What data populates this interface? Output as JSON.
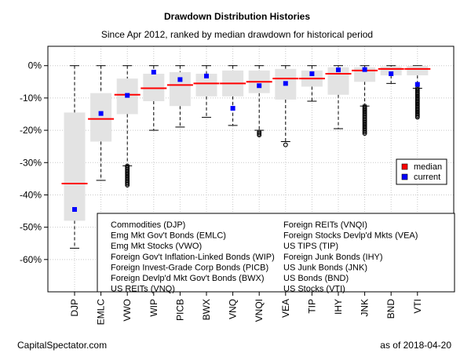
{
  "chart_data": {
    "type": "box",
    "title": "Drawdown Distribution Histories",
    "subtitle": "Since Apr 2012, ranked by median drawdown for historical period",
    "ylim": [
      -70,
      6
    ],
    "yticks": [
      0,
      -10,
      -20,
      -30,
      -40,
      -50,
      -60
    ],
    "ytick_labels": [
      "0%",
      "-10%",
      "-20%",
      "-30%",
      "-40%",
      "-50%",
      "-60%"
    ],
    "grid": true,
    "legend": {
      "placement": "right",
      "entries": [
        {
          "label": "median",
          "color": "#ff0000"
        },
        {
          "label": "current",
          "color": "#0000ff"
        }
      ]
    },
    "categories": [
      "DJP",
      "EMLC",
      "VWO",
      "WIP",
      "PICB",
      "BWX",
      "VNQ",
      "VNQI",
      "VEA",
      "TIP",
      "IHY",
      "JNK",
      "BND",
      "VTI"
    ],
    "boxes": [
      {
        "ticker": "DJP",
        "whisker_low": -56.5,
        "q1": -48.0,
        "median": -36.5,
        "q3": -14.5,
        "whisker_high": 0.0,
        "current": -44.5,
        "outliers_low": null
      },
      {
        "ticker": "EMLC",
        "whisker_low": -35.5,
        "q1": -23.5,
        "median": -16.5,
        "q3": -8.5,
        "whisker_high": 0.0,
        "current": -14.8,
        "outliers_low": null
      },
      {
        "ticker": "VWO",
        "whisker_low": -31.0,
        "q1": -15.0,
        "median": -9.0,
        "q3": -4.0,
        "whisker_high": 0.0,
        "current": -9.2,
        "outliers_low": [
          -31.0,
          -37.0
        ]
      },
      {
        "ticker": "WIP",
        "whisker_low": -20.0,
        "q1": -11.0,
        "median": -7.0,
        "q3": -2.5,
        "whisker_high": 0.0,
        "current": -2.0,
        "outliers_low": null
      },
      {
        "ticker": "PICB",
        "whisker_low": -19.0,
        "q1": -12.5,
        "median": -6.0,
        "q3": -2.0,
        "whisker_high": 0.0,
        "current": -4.3,
        "outliers_low": null
      },
      {
        "ticker": "BWX",
        "whisker_low": -16.0,
        "q1": -9.5,
        "median": -5.5,
        "q3": -2.5,
        "whisker_high": 0.0,
        "current": -3.2,
        "outliers_low": null
      },
      {
        "ticker": "VNQ",
        "whisker_low": -18.5,
        "q1": -9.5,
        "median": -5.5,
        "q3": -1.5,
        "whisker_high": 0.0,
        "current": -13.2,
        "outliers_low": null
      },
      {
        "ticker": "VNQI",
        "whisker_low": -20.0,
        "q1": -8.5,
        "median": -5.0,
        "q3": -1.5,
        "whisker_high": 0.0,
        "current": -6.2,
        "outliers_low": [
          -20.5,
          -21.5
        ]
      },
      {
        "ticker": "VEA",
        "whisker_low": -23.5,
        "q1": -10.5,
        "median": -4.0,
        "q3": -1.0,
        "whisker_high": 0.0,
        "current": -5.5,
        "outliers_low": [
          -24.5,
          -24.5
        ]
      },
      {
        "ticker": "TIP",
        "whisker_low": -11.0,
        "q1": -6.5,
        "median": -4.0,
        "q3": -1.5,
        "whisker_high": 0.0,
        "current": -2.5,
        "outliers_low": null
      },
      {
        "ticker": "IHY",
        "whisker_low": -19.5,
        "q1": -9.0,
        "median": -2.5,
        "q3": -0.5,
        "whisker_high": 0.0,
        "current": -1.3,
        "outliers_low": null
      },
      {
        "ticker": "JNK",
        "whisker_low": -12.5,
        "q1": -5.0,
        "median": -1.5,
        "q3": -0.5,
        "whisker_high": 0.0,
        "current": -1.2,
        "outliers_low": [
          -12.5,
          -21.0
        ]
      },
      {
        "ticker": "BND",
        "whisker_low": -5.5,
        "q1": -3.0,
        "median": -1.0,
        "q3": -0.3,
        "whisker_high": 0.0,
        "current": -2.5,
        "outliers_low": null
      },
      {
        "ticker": "VTI",
        "whisker_low": -7.0,
        "q1": -3.0,
        "median": -1.0,
        "q3": -0.1,
        "whisker_high": 0.0,
        "current": -5.8,
        "outliers_low": [
          -7.0,
          -16.0
        ]
      }
    ],
    "key_entries_col1": [
      "Commodities (DJP)",
      "Emg Mkt Gov't Bonds (EMLC)",
      "Emg Mkt Stocks (VWO)",
      "Foreign Gov't Inflation-Linked Bonds (WIP)",
      "Foreign Invest-Grade Corp Bonds (PICB)",
      "Foreign Devlp'd Mkt Gov't Bonds (BWX)",
      "US REITs (VNQ)"
    ],
    "key_entries_col2": [
      "Foreign REITs (VNQI)",
      "Foreign Stocks Devlp'd Mkts (VEA)",
      "US TIPS (TIP)",
      "Foreign Junk Bonds (IHY)",
      "US Junk Bonds (JNK)",
      "US Bonds (BND)",
      "US Stocks (VTI)"
    ],
    "colors": {
      "box_fill": "#e3e3e3",
      "median": "#ff0000",
      "current": "#0000ff",
      "grid": "#c8c8c8"
    }
  },
  "footer": {
    "source": "CapitalSpectator.com",
    "date": "as of  2018-04-20"
  }
}
